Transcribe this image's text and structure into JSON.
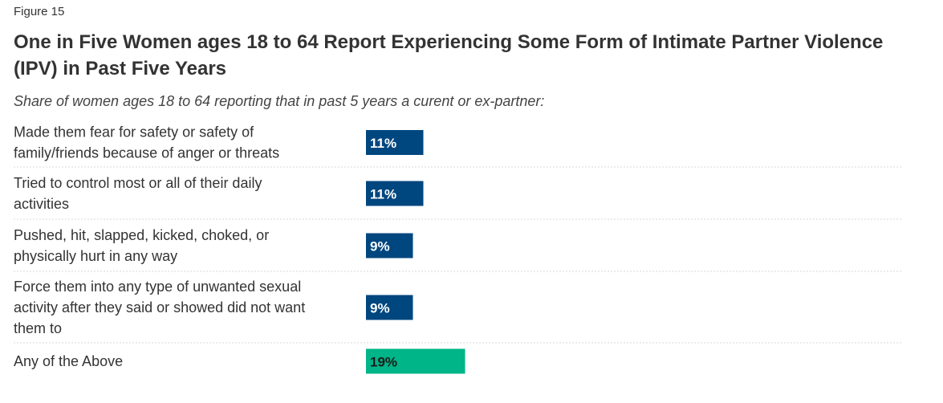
{
  "figure_label": "Figure 15",
  "colors": {
    "primary_bar": "#00467f",
    "total_bar": "#00b588",
    "divider": "#d9d9d9"
  },
  "chart_data": {
    "type": "bar",
    "orientation": "horizontal",
    "title": "One in Five Women ages 18 to 64 Report Experiencing Some Form of Intimate Partner Violence (IPV) in Past Five Years",
    "subtitle": "Share of women ages 18 to 64 reporting that in past 5 years a curent or ex-partner:",
    "xlim": [
      0,
      100
    ],
    "unit": "%",
    "grid": false,
    "categories": [
      [
        "Made them fear for safety or safety of",
        "family/friends because of anger or threats"
      ],
      [
        "Tried to control most or all of their daily",
        "activities"
      ],
      [
        "Pushed, hit, slapped, kicked, choked, or",
        "physically hurt in any way"
      ],
      [
        "Force them into any type of unwanted sexual",
        "activity after they said or showed did not want",
        "them to"
      ],
      [
        "Any of the Above"
      ]
    ],
    "values": [
      11,
      11,
      9,
      9,
      19
    ],
    "value_labels": [
      "11%",
      "11%",
      "9%",
      "9%",
      "19%"
    ],
    "bar_colors": [
      "#00467f",
      "#00467f",
      "#00467f",
      "#00467f",
      "#00b588"
    ],
    "label_colors": [
      "#ffffff",
      "#ffffff",
      "#ffffff",
      "#ffffff",
      "#1a1a1a"
    ]
  }
}
